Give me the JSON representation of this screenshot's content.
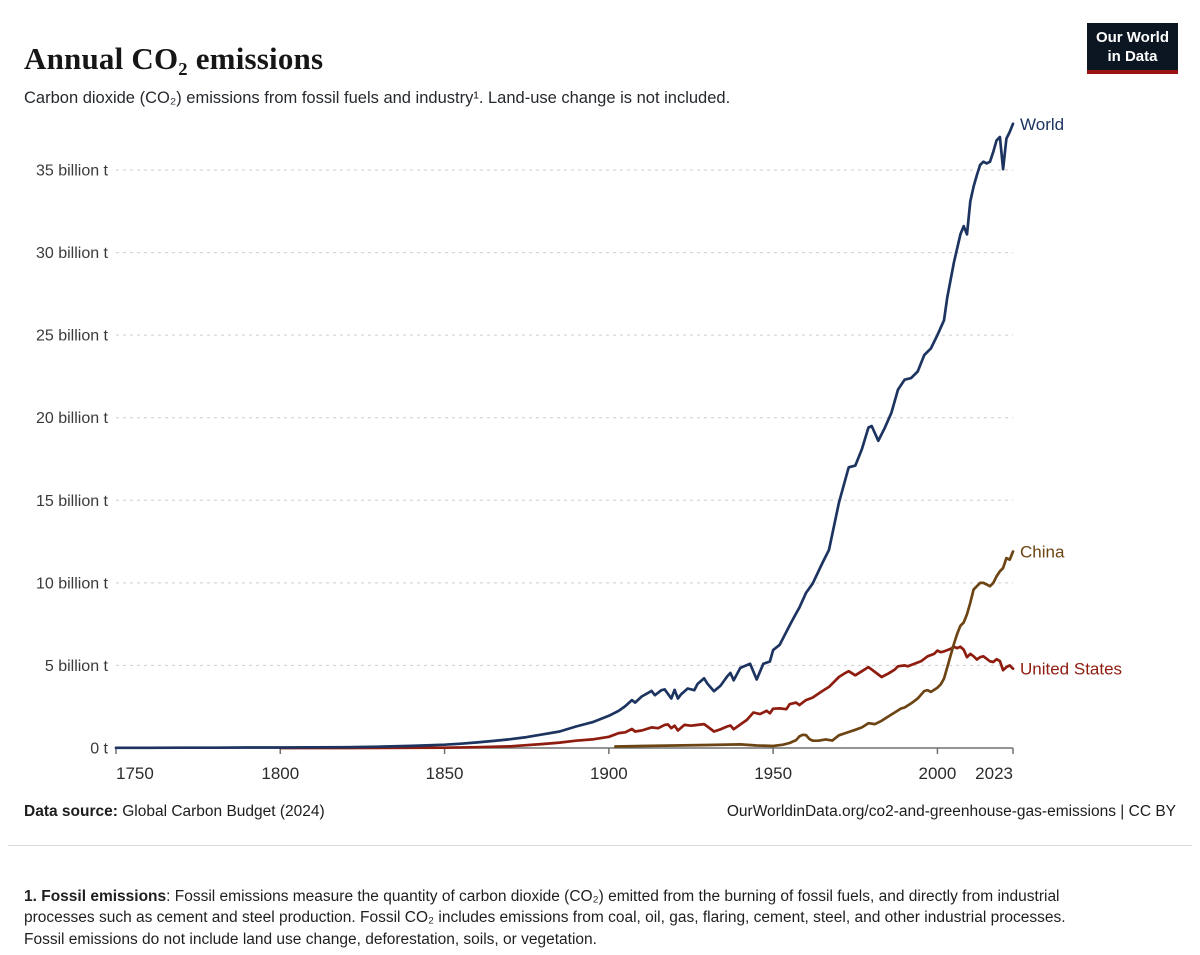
{
  "header": {
    "title": "Annual CO₂ emissions",
    "subtitle": "Carbon dioxide (CO₂) emissions from fossil fuels and industry¹. Land-use change is not included.",
    "logo": {
      "line1": "Our World",
      "line2": "in Data",
      "bg_color": "#0b1622",
      "accent_color": "#9a1212"
    }
  },
  "chart_data": {
    "type": "line",
    "title": "Annual CO₂ emissions",
    "unit": "billion t",
    "xlabel": "",
    "ylabel": "",
    "xlim": [
      1750,
      2023
    ],
    "ylim": [
      0,
      38
    ],
    "grid": "horizontal-dashed",
    "grid_color": "#cdcdcd",
    "axis_color": "#707070",
    "tick_label_color": "#2b2b2b",
    "legend_position": "line-end-labels",
    "x_ticks": [
      {
        "value": 1750,
        "label": "1750"
      },
      {
        "value": 1800,
        "label": "1800"
      },
      {
        "value": 1850,
        "label": "1850"
      },
      {
        "value": 1900,
        "label": "1900"
      },
      {
        "value": 1950,
        "label": "1950"
      },
      {
        "value": 2000,
        "label": "2000"
      },
      {
        "value": 2023,
        "label": "2023"
      }
    ],
    "y_ticks": [
      {
        "value": 0,
        "label": "0 t"
      },
      {
        "value": 5,
        "label": "5 billion t"
      },
      {
        "value": 10,
        "label": "10 billion t"
      },
      {
        "value": 15,
        "label": "15 billion t"
      },
      {
        "value": 20,
        "label": "20 billion t"
      },
      {
        "value": 25,
        "label": "25 billion t"
      },
      {
        "value": 30,
        "label": "30 billion t"
      },
      {
        "value": 35,
        "label": "35 billion t"
      }
    ],
    "series": [
      {
        "name": "United States",
        "color": "#8e1c0f",
        "points": [
          [
            1800,
            0.0003
          ],
          [
            1820,
            0.003
          ],
          [
            1840,
            0.01
          ],
          [
            1850,
            0.02
          ],
          [
            1860,
            0.05
          ],
          [
            1870,
            0.1
          ],
          [
            1880,
            0.24
          ],
          [
            1885,
            0.33
          ],
          [
            1890,
            0.44
          ],
          [
            1895,
            0.52
          ],
          [
            1900,
            0.68
          ],
          [
            1903,
            0.9
          ],
          [
            1905,
            0.95
          ],
          [
            1907,
            1.15
          ],
          [
            1908,
            1.0
          ],
          [
            1910,
            1.06
          ],
          [
            1913,
            1.25
          ],
          [
            1915,
            1.2
          ],
          [
            1917,
            1.4
          ],
          [
            1918,
            1.42
          ],
          [
            1919,
            1.2
          ],
          [
            1920,
            1.35
          ],
          [
            1921,
            1.06
          ],
          [
            1923,
            1.4
          ],
          [
            1925,
            1.35
          ],
          [
            1927,
            1.4
          ],
          [
            1929,
            1.45
          ],
          [
            1930,
            1.3
          ],
          [
            1932,
            1.0
          ],
          [
            1934,
            1.13
          ],
          [
            1936,
            1.3
          ],
          [
            1937,
            1.36
          ],
          [
            1938,
            1.14
          ],
          [
            1940,
            1.42
          ],
          [
            1942,
            1.7
          ],
          [
            1944,
            2.15
          ],
          [
            1946,
            2.05
          ],
          [
            1948,
            2.25
          ],
          [
            1949,
            2.1
          ],
          [
            1950,
            2.38
          ],
          [
            1952,
            2.4
          ],
          [
            1954,
            2.35
          ],
          [
            1955,
            2.65
          ],
          [
            1957,
            2.75
          ],
          [
            1958,
            2.6
          ],
          [
            1960,
            2.9
          ],
          [
            1962,
            3.05
          ],
          [
            1965,
            3.45
          ],
          [
            1967,
            3.7
          ],
          [
            1970,
            4.3
          ],
          [
            1972,
            4.55
          ],
          [
            1973,
            4.65
          ],
          [
            1975,
            4.4
          ],
          [
            1977,
            4.65
          ],
          [
            1979,
            4.9
          ],
          [
            1981,
            4.6
          ],
          [
            1983,
            4.3
          ],
          [
            1985,
            4.5
          ],
          [
            1987,
            4.75
          ],
          [
            1988,
            4.95
          ],
          [
            1990,
            5.0
          ],
          [
            1991,
            4.95
          ],
          [
            1993,
            5.1
          ],
          [
            1995,
            5.25
          ],
          [
            1997,
            5.55
          ],
          [
            1999,
            5.7
          ],
          [
            2000,
            5.9
          ],
          [
            2001,
            5.8
          ],
          [
            2002,
            5.85
          ],
          [
            2004,
            6.0
          ],
          [
            2005,
            6.13
          ],
          [
            2006,
            6.05
          ],
          [
            2007,
            6.13
          ],
          [
            2008,
            5.95
          ],
          [
            2009,
            5.5
          ],
          [
            2010,
            5.7
          ],
          [
            2011,
            5.55
          ],
          [
            2012,
            5.36
          ],
          [
            2013,
            5.5
          ],
          [
            2014,
            5.55
          ],
          [
            2015,
            5.4
          ],
          [
            2016,
            5.25
          ],
          [
            2017,
            5.21
          ],
          [
            2018,
            5.38
          ],
          [
            2019,
            5.26
          ],
          [
            2020,
            4.71
          ],
          [
            2021,
            4.9
          ],
          [
            2022,
            5.0
          ],
          [
            2023,
            4.8
          ]
        ]
      },
      {
        "name": "China",
        "color": "#6d4413",
        "points": [
          [
            1902,
            0.09
          ],
          [
            1910,
            0.12
          ],
          [
            1920,
            0.15
          ],
          [
            1930,
            0.18
          ],
          [
            1940,
            0.22
          ],
          [
            1945,
            0.15
          ],
          [
            1950,
            0.12
          ],
          [
            1953,
            0.2
          ],
          [
            1955,
            0.3
          ],
          [
            1957,
            0.48
          ],
          [
            1958,
            0.7
          ],
          [
            1959,
            0.8
          ],
          [
            1960,
            0.78
          ],
          [
            1961,
            0.55
          ],
          [
            1962,
            0.44
          ],
          [
            1964,
            0.45
          ],
          [
            1966,
            0.52
          ],
          [
            1968,
            0.45
          ],
          [
            1970,
            0.77
          ],
          [
            1972,
            0.9
          ],
          [
            1975,
            1.1
          ],
          [
            1977,
            1.25
          ],
          [
            1979,
            1.5
          ],
          [
            1981,
            1.45
          ],
          [
            1983,
            1.65
          ],
          [
            1985,
            1.9
          ],
          [
            1987,
            2.15
          ],
          [
            1989,
            2.4
          ],
          [
            1990,
            2.45
          ],
          [
            1992,
            2.7
          ],
          [
            1994,
            3.0
          ],
          [
            1996,
            3.45
          ],
          [
            1997,
            3.5
          ],
          [
            1998,
            3.4
          ],
          [
            2000,
            3.65
          ],
          [
            2001,
            3.85
          ],
          [
            2002,
            4.2
          ],
          [
            2003,
            4.9
          ],
          [
            2004,
            5.6
          ],
          [
            2005,
            6.3
          ],
          [
            2006,
            6.9
          ],
          [
            2007,
            7.4
          ],
          [
            2008,
            7.6
          ],
          [
            2009,
            8.1
          ],
          [
            2010,
            8.8
          ],
          [
            2011,
            9.6
          ],
          [
            2012,
            9.8
          ],
          [
            2013,
            10.0
          ],
          [
            2014,
            10.0
          ],
          [
            2015,
            9.9
          ],
          [
            2016,
            9.8
          ],
          [
            2017,
            10.0
          ],
          [
            2018,
            10.4
          ],
          [
            2019,
            10.7
          ],
          [
            2020,
            10.9
          ],
          [
            2021,
            11.5
          ],
          [
            2022,
            11.4
          ],
          [
            2023,
            11.9
          ]
        ]
      },
      {
        "name": "World",
        "color": "#1d3461",
        "points": [
          [
            1750,
            0.01
          ],
          [
            1760,
            0.01
          ],
          [
            1770,
            0.02
          ],
          [
            1780,
            0.02
          ],
          [
            1790,
            0.03
          ],
          [
            1800,
            0.03
          ],
          [
            1810,
            0.04
          ],
          [
            1820,
            0.05
          ],
          [
            1830,
            0.08
          ],
          [
            1840,
            0.13
          ],
          [
            1850,
            0.2
          ],
          [
            1855,
            0.26
          ],
          [
            1860,
            0.34
          ],
          [
            1865,
            0.43
          ],
          [
            1870,
            0.53
          ],
          [
            1875,
            0.66
          ],
          [
            1880,
            0.83
          ],
          [
            1885,
            1.0
          ],
          [
            1890,
            1.3
          ],
          [
            1895,
            1.56
          ],
          [
            1900,
            1.95
          ],
          [
            1903,
            2.25
          ],
          [
            1905,
            2.54
          ],
          [
            1907,
            2.9
          ],
          [
            1908,
            2.75
          ],
          [
            1910,
            3.12
          ],
          [
            1913,
            3.46
          ],
          [
            1914,
            3.2
          ],
          [
            1916,
            3.5
          ],
          [
            1917,
            3.55
          ],
          [
            1919,
            3.0
          ],
          [
            1920,
            3.52
          ],
          [
            1921,
            3.0
          ],
          [
            1922,
            3.25
          ],
          [
            1924,
            3.6
          ],
          [
            1926,
            3.5
          ],
          [
            1927,
            3.88
          ],
          [
            1929,
            4.22
          ],
          [
            1930,
            3.9
          ],
          [
            1932,
            3.44
          ],
          [
            1934,
            3.78
          ],
          [
            1936,
            4.33
          ],
          [
            1937,
            4.55
          ],
          [
            1938,
            4.1
          ],
          [
            1940,
            4.85
          ],
          [
            1943,
            5.1
          ],
          [
            1945,
            4.15
          ],
          [
            1947,
            5.1
          ],
          [
            1949,
            5.24
          ],
          [
            1950,
            5.93
          ],
          [
            1952,
            6.25
          ],
          [
            1955,
            7.42
          ],
          [
            1957,
            8.15
          ],
          [
            1958,
            8.5
          ],
          [
            1960,
            9.39
          ],
          [
            1962,
            9.95
          ],
          [
            1965,
            11.2
          ],
          [
            1967,
            12.0
          ],
          [
            1970,
            14.85
          ],
          [
            1973,
            17.0
          ],
          [
            1975,
            17.1
          ],
          [
            1977,
            18.1
          ],
          [
            1979,
            19.4
          ],
          [
            1980,
            19.5
          ],
          [
            1982,
            18.6
          ],
          [
            1984,
            19.4
          ],
          [
            1986,
            20.3
          ],
          [
            1988,
            21.7
          ],
          [
            1990,
            22.3
          ],
          [
            1992,
            22.4
          ],
          [
            1994,
            22.8
          ],
          [
            1996,
            23.8
          ],
          [
            1998,
            24.2
          ],
          [
            2000,
            25.0
          ],
          [
            2002,
            25.9
          ],
          [
            2003,
            27.3
          ],
          [
            2005,
            29.4
          ],
          [
            2007,
            31.1
          ],
          [
            2008,
            31.6
          ],
          [
            2009,
            31.1
          ],
          [
            2010,
            33.1
          ],
          [
            2011,
            34.0
          ],
          [
            2012,
            34.7
          ],
          [
            2013,
            35.3
          ],
          [
            2014,
            35.5
          ],
          [
            2015,
            35.4
          ],
          [
            2016,
            35.5
          ],
          [
            2017,
            36.1
          ],
          [
            2018,
            36.8
          ],
          [
            2019,
            37.0
          ],
          [
            2020,
            35.05
          ],
          [
            2021,
            36.9
          ],
          [
            2022,
            37.3
          ],
          [
            2023,
            37.8
          ]
        ]
      }
    ]
  },
  "footer": {
    "source_label": "Data source:",
    "source_text": " Global Carbon Budget (2024)",
    "attribution": "OurWorldinData.org/co2-and-greenhouse-gas-emissions | CC BY"
  },
  "footnote": {
    "label": "1. Fossil emissions",
    "text": ": Fossil emissions measure the quantity of carbon dioxide (CO₂) emitted from the burning of fossil fuels, and directly from industrial processes such as cement and steel production. Fossil CO₂ includes emissions from coal, oil, gas, flaring, cement, steel, and other industrial processes. Fossil emissions do not include land use change, deforestation, soils, or vegetation."
  }
}
